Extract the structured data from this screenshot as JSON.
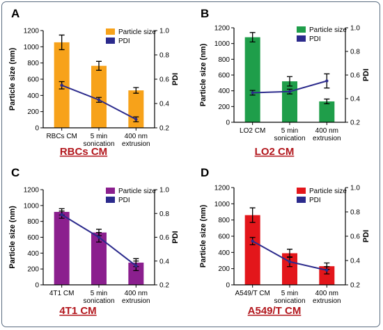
{
  "chart_data": [
    {
      "type": "bar+line",
      "panel_label": "A",
      "caption": "RBCs CM",
      "categories": [
        "RBCs CM",
        "5 min\nsonication",
        "400 nm\nextrusion"
      ],
      "bar_color": "#f7a21a",
      "series": [
        {
          "name": "Particle size",
          "kind": "bar",
          "axis": "left",
          "values": [
            1055,
            765,
            462
          ],
          "errors": [
            90,
            55,
            35
          ]
        },
        {
          "name": "PDI",
          "kind": "line",
          "axis": "right",
          "values": [
            0.55,
            0.43,
            0.27
          ],
          "errors": [
            0.03,
            0.02,
            0.02
          ]
        }
      ],
      "ylabel": "Particle size (nm)",
      "ylim": [
        0,
        1200
      ],
      "yticks": [
        0,
        200,
        400,
        600,
        800,
        1000,
        1200
      ],
      "y2label": "PDI",
      "y2lim": [
        0.2,
        1.0
      ],
      "y2ticks": [
        "0.2",
        "0.4",
        "0.6",
        "0.8",
        "1.0"
      ],
      "legend": "top-right",
      "grid": false
    },
    {
      "type": "bar+line",
      "panel_label": "B",
      "caption": "LO2 CM",
      "categories": [
        "LO2 CM",
        "5 min\nsonication",
        "400 nm\nextrusion"
      ],
      "bar_color": "#1f9e4a",
      "series": [
        {
          "name": "Particle size",
          "kind": "bar",
          "axis": "left",
          "values": [
            1080,
            520,
            265
          ],
          "errors": [
            60,
            60,
            30
          ]
        },
        {
          "name": "PDI",
          "kind": "line",
          "axis": "right",
          "values": [
            0.45,
            0.46,
            0.55
          ],
          "errors": [
            0.02,
            0.02,
            0.06
          ]
        }
      ],
      "ylabel": "Particle size (nm)",
      "ylim": [
        0,
        1200
      ],
      "yticks": [
        0,
        200,
        400,
        600,
        800,
        1000,
        1200
      ],
      "y2label": "PDI",
      "y2lim": [
        0.2,
        1.0
      ],
      "y2ticks": [
        "0.2",
        "0.4",
        "0.6",
        "0.8",
        "1.0"
      ],
      "legend": "top-right",
      "grid": false
    },
    {
      "type": "bar+line",
      "panel_label": "C",
      "caption": "4T1 CM",
      "categories": [
        "4T1 CM",
        "5 min\nsonication",
        "400 nm\nextrusion"
      ],
      "bar_color": "#8b1f8e",
      "series": [
        {
          "name": "Particle size",
          "kind": "bar",
          "axis": "left",
          "values": [
            920,
            660,
            280
          ],
          "errors": [
            40,
            40,
            50
          ]
        },
        {
          "name": "PDI",
          "kind": "line",
          "axis": "right",
          "values": [
            0.79,
            0.6,
            0.36
          ],
          "errors": [
            0.03,
            0.04,
            0.04
          ]
        }
      ],
      "ylabel": "Particle size (nm)",
      "ylim": [
        0,
        1200
      ],
      "yticks": [
        0,
        200,
        400,
        600,
        800,
        1000,
        1200
      ],
      "y2label": "PDI",
      "y2lim": [
        0.2,
        1.0
      ],
      "y2ticks": [
        "0.2",
        "0.4",
        "0.6",
        "0.8",
        "1.0"
      ],
      "legend": "top-right",
      "grid": false
    },
    {
      "type": "bar+line",
      "panel_label": "D",
      "caption": "A549/T CM",
      "categories": [
        "A549/T CM",
        "5 min\nsonication",
        "400 nm\nextrusion"
      ],
      "bar_color": "#e3161b",
      "series": [
        {
          "name": "Particle size",
          "kind": "bar",
          "axis": "left",
          "values": [
            860,
            390,
            230
          ],
          "errors": [
            90,
            50,
            40
          ]
        },
        {
          "name": "PDI",
          "kind": "line",
          "axis": "right",
          "values": [
            0.56,
            0.39,
            0.32
          ],
          "errors": [
            0.03,
            0.04,
            0.03
          ]
        }
      ],
      "ylabel": "Particle size (nm)",
      "ylim": [
        0,
        1200
      ],
      "yticks": [
        0,
        200,
        400,
        600,
        800,
        1000,
        1200
      ],
      "y2label": "PDI",
      "y2lim": [
        0.2,
        1.0
      ],
      "y2ticks": [
        "0.2",
        "0.4",
        "0.6",
        "0.8",
        "1.0"
      ],
      "legend": "top-right",
      "grid": false
    }
  ],
  "colors": {
    "line": "#2b2a8c",
    "caption": "#b2161c",
    "axis": "#000000",
    "frame": "#5a6c80"
  }
}
